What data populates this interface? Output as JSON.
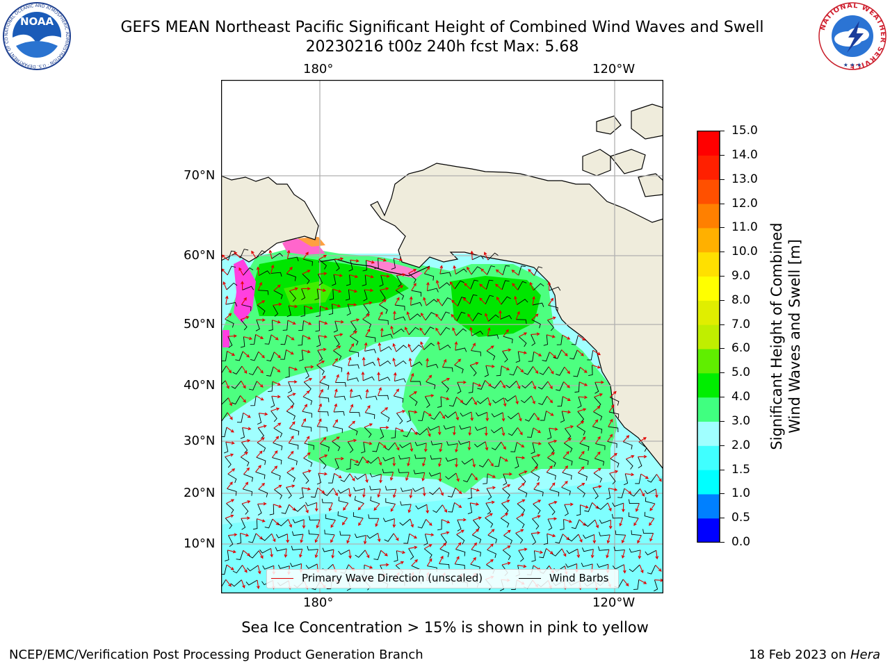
{
  "header": {
    "title_line1": "GEFS MEAN Northeast Pacific Significant Height of Combined Wind Waves and Swell",
    "title_line2": "20230216 t00z 240h fcst   Max: 5.68"
  },
  "logos": {
    "left": {
      "text": "NOAA",
      "ring_text": "NATIONAL OCEANIC AND ATMOSPHERIC ADMINISTRATION · U.S. DEPARTMENT OF COMMERCE"
    },
    "right": {
      "ring_text": "NATIONAL WEATHER SERVICE"
    }
  },
  "map": {
    "longitude_labels": [
      "180°",
      "120°W"
    ],
    "latitude_labels": [
      "70°N",
      "60°N",
      "50°N",
      "40°N",
      "30°N",
      "20°N",
      "10°N"
    ],
    "colors": {
      "land": "#efecdc",
      "ocean_background": "#ffffff",
      "coastline": "#000000",
      "graticule": "#b0b0b0"
    }
  },
  "legend": {
    "wave_direction": {
      "label": "Primary Wave Direction (unscaled)",
      "color": "#e00000"
    },
    "wind_barbs": {
      "label": "Wind Barbs",
      "color": "#000000"
    }
  },
  "colorbar": {
    "title_line1": "Significant Height of Combined",
    "title_line2": "Wind Waves and Swell [m]",
    "ticks": [
      "15.0",
      "14.0",
      "13.0",
      "12.0",
      "11.0",
      "10.0",
      "9.0",
      "8.0",
      "7.0",
      "6.0",
      "5.0",
      "4.0",
      "3.0",
      "2.0",
      "1.5",
      "1.0",
      "0.5",
      "0.0"
    ],
    "colors_bottom_to_top": [
      "#0000ff",
      "#0080ff",
      "#00ffff",
      "#40ffff",
      "#a0ffff",
      "#40ff80",
      "#00ee00",
      "#60ee00",
      "#c0ee00",
      "#e0ee00",
      "#ffff00",
      "#ffe000",
      "#ffb000",
      "#ff8000",
      "#ff5000",
      "#ff2000",
      "#ff0000"
    ]
  },
  "footer": {
    "sea_ice_note": "Sea Ice Concentration > 15% is shown in pink to yellow",
    "org": "NCEP/EMC/Verification Post Processing Product Generation Branch",
    "date": "18 Feb 2023 on ",
    "machine": "Hera"
  }
}
